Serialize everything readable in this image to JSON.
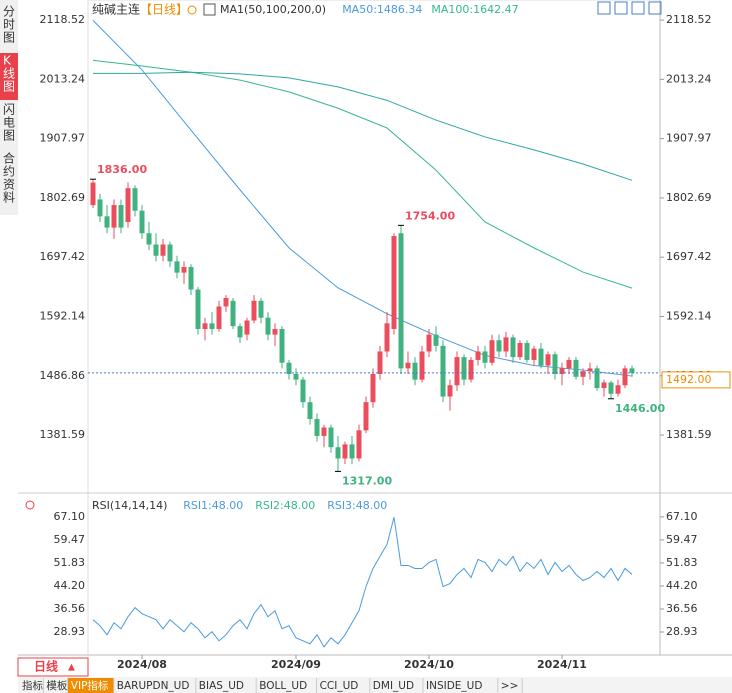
{
  "header": {
    "symbol": "纯碱主连",
    "period": "【日线】"
  },
  "sidebar": [
    "分时图",
    "K线图",
    "闪电图",
    "合约资料"
  ],
  "bottom_tabs": {
    "period_button": "日线",
    "tabs": [
      "指标",
      "模板",
      "VIP指标",
      "BARUPDN_UD",
      "BIAS_UD",
      "BOLL_UD",
      "CCI_UD",
      "DMI_UD",
      "INSIDE_UD",
      ">>"
    ]
  },
  "chart_data": [
    {
      "type": "candlestick",
      "legend": [
        {
          "label": "MA1(50,100,200,0)",
          "color": "#333333"
        },
        {
          "label": "MA50:1486.34",
          "color": "#4a9be0"
        },
        {
          "label": "MA100:1642.47",
          "color": "#35b88e"
        }
      ],
      "categories": [
        null,
        null,
        null,
        null,
        null,
        null,
        null,
        "2024/08",
        null,
        null,
        null,
        null,
        null,
        null,
        null,
        null,
        null,
        null,
        null,
        null,
        null,
        null,
        null,
        null,
        null,
        null,
        null,
        null,
        null,
        "2024/09",
        null,
        null,
        null,
        null,
        null,
        null,
        null,
        null,
        null,
        null,
        null,
        null,
        null,
        null,
        null,
        null,
        null,
        null,
        "2024/10",
        null,
        null,
        null,
        null,
        null,
        null,
        null,
        null,
        null,
        null,
        null,
        null,
        null,
        null,
        null,
        null,
        null,
        null,
        "2024/11",
        null,
        null,
        null,
        null,
        null,
        null,
        null,
        null,
        null,
        null,
        null
      ],
      "up_color": "#eb4d5c",
      "down_color": "#3fb27f",
      "candles": [
        [
          1790,
          1836,
          1785,
          1830
        ],
        [
          1800,
          1810,
          1760,
          1770
        ],
        [
          1770,
          1790,
          1740,
          1750
        ],
        [
          1750,
          1800,
          1730,
          1790
        ],
        [
          1790,
          1800,
          1740,
          1750
        ],
        [
          1760,
          1830,
          1750,
          1820
        ],
        [
          1820,
          1825,
          1770,
          1780
        ],
        [
          1780,
          1790,
          1730,
          1740
        ],
        [
          1740,
          1760,
          1710,
          1720
        ],
        [
          1720,
          1740,
          1690,
          1700
        ],
        [
          1700,
          1730,
          1690,
          1720
        ],
        [
          1720,
          1725,
          1680,
          1690
        ],
        [
          1690,
          1700,
          1660,
          1670
        ],
        [
          1670,
          1690,
          1650,
          1680
        ],
        [
          1680,
          1685,
          1630,
          1640
        ],
        [
          1640,
          1645,
          1560,
          1570
        ],
        [
          1570,
          1590,
          1550,
          1580
        ],
        [
          1580,
          1600,
          1560,
          1570
        ],
        [
          1570,
          1620,
          1565,
          1610
        ],
        [
          1610,
          1630,
          1600,
          1625
        ],
        [
          1620,
          1625,
          1570,
          1575
        ],
        [
          1575,
          1580,
          1545,
          1555
        ],
        [
          1560,
          1590,
          1550,
          1585
        ],
        [
          1585,
          1630,
          1580,
          1620
        ],
        [
          1620,
          1625,
          1580,
          1590
        ],
        [
          1590,
          1600,
          1550,
          1560
        ],
        [
          1560,
          1580,
          1540,
          1570
        ],
        [
          1570,
          1575,
          1500,
          1510
        ],
        [
          1510,
          1515,
          1480,
          1490
        ],
        [
          1490,
          1500,
          1470,
          1480
        ],
        [
          1480,
          1485,
          1430,
          1440
        ],
        [
          1440,
          1450,
          1400,
          1410
        ],
        [
          1410,
          1420,
          1370,
          1380
        ],
        [
          1380,
          1400,
          1360,
          1395
        ],
        [
          1395,
          1400,
          1350,
          1360
        ],
        [
          1360,
          1380,
          1317,
          1340
        ],
        [
          1340,
          1370,
          1330,
          1365
        ],
        [
          1365,
          1380,
          1330,
          1340
        ],
        [
          1340,
          1400,
          1335,
          1390
        ],
        [
          1390,
          1450,
          1385,
          1440
        ],
        [
          1440,
          1500,
          1430,
          1490
        ],
        [
          1490,
          1540,
          1480,
          1530
        ],
        [
          1530,
          1600,
          1520,
          1580
        ],
        [
          1570,
          1740,
          1560,
          1735
        ],
        [
          1740,
          1754,
          1490,
          1500
        ],
        [
          1500,
          1530,
          1490,
          1510
        ],
        [
          1510,
          1520,
          1470,
          1480
        ],
        [
          1480,
          1540,
          1475,
          1530
        ],
        [
          1530,
          1570,
          1520,
          1560
        ],
        [
          1560,
          1575,
          1530,
          1540
        ],
        [
          1540,
          1550,
          1440,
          1450
        ],
        [
          1450,
          1480,
          1425,
          1470
        ],
        [
          1470,
          1530,
          1460,
          1520
        ],
        [
          1520,
          1525,
          1470,
          1480
        ],
        [
          1480,
          1520,
          1475,
          1515
        ],
        [
          1515,
          1540,
          1505,
          1530
        ],
        [
          1530,
          1540,
          1500,
          1510
        ],
        [
          1510,
          1560,
          1505,
          1550
        ],
        [
          1550,
          1560,
          1520,
          1530
        ],
        [
          1530,
          1565,
          1520,
          1555
        ],
        [
          1555,
          1560,
          1510,
          1520
        ],
        [
          1520,
          1550,
          1515,
          1545
        ],
        [
          1545,
          1550,
          1510,
          1515
        ],
        [
          1515,
          1540,
          1505,
          1535
        ],
        [
          1535,
          1545,
          1500,
          1505
        ],
        [
          1505,
          1530,
          1490,
          1525
        ],
        [
          1525,
          1530,
          1480,
          1490
        ],
        [
          1490,
          1510,
          1470,
          1500
        ],
        [
          1500,
          1520,
          1490,
          1515
        ],
        [
          1515,
          1520,
          1480,
          1485
        ],
        [
          1485,
          1500,
          1470,
          1495
        ],
        [
          1495,
          1510,
          1480,
          1500
        ],
        [
          1500,
          1505,
          1460,
          1465
        ],
        [
          1465,
          1480,
          1450,
          1475
        ],
        [
          1475,
          1478,
          1446,
          1455
        ],
        [
          1455,
          1480,
          1450,
          1470
        ],
        [
          1470,
          1505,
          1465,
          1500
        ],
        [
          1500,
          1505,
          1485,
          1492
        ]
      ],
      "ma_series": [
        {
          "color": "#4a9be0",
          "x": [
            0,
            7,
            14,
            21,
            28,
            35,
            42,
            49,
            56,
            63,
            70,
            77
          ],
          "values": [
            2118,
            2030,
            1923,
            1817,
            1714,
            1643,
            1597,
            1558,
            1523,
            1505,
            1497,
            1486.34
          ]
        },
        {
          "color": "#35b88e",
          "x": [
            0,
            7,
            14,
            21,
            28,
            35,
            42,
            49,
            56,
            63,
            70,
            77
          ],
          "values": [
            2047,
            2037,
            2026,
            2012,
            1991,
            1962,
            1927,
            1852,
            1760,
            1714,
            1671,
            1642.47
          ]
        },
        {
          "color": "#2fa5a8",
          "x": [
            0,
            7,
            14,
            21,
            28,
            35,
            42,
            49,
            56,
            63,
            70,
            77
          ],
          "values": [
            2024,
            2024,
            2026,
            2023,
            2016,
            2000,
            1976,
            1941,
            1911,
            1888,
            1863,
            1834
          ]
        }
      ],
      "annotations": [
        {
          "index": 0,
          "value": 1836,
          "label": "1836.00",
          "color": "#eb4d5c"
        },
        {
          "index": 44,
          "value": 1754,
          "label": "1754.00",
          "color": "#eb4d5c"
        },
        {
          "index": 35,
          "value": 1317,
          "label": "1317.00",
          "color": "#3fb27f"
        },
        {
          "index": 74,
          "value": 1446,
          "label": "1446.00",
          "color": "#3fb27f"
        }
      ],
      "last_price": {
        "value": 1492,
        "label": "1492.00"
      },
      "ylim": [
        1284,
        2140
      ],
      "yticks": [
        2118.52,
        2013.24,
        1907.97,
        1802.69,
        1697.42,
        1592.14,
        1486.86,
        1381.59
      ]
    },
    {
      "type": "line",
      "legend": [
        {
          "label": "RSI(14,14,14)",
          "color": "#333333"
        },
        {
          "label": "RSI1:48.00",
          "color": "#4a9be0"
        },
        {
          "label": "RSI2:48.00",
          "color": "#35b88e"
        },
        {
          "label": "RSI3:48.00",
          "color": "#4a9be0"
        }
      ],
      "series": [
        {
          "color": "#4a9be0",
          "values": [
            33,
            31,
            28,
            32,
            30,
            34,
            37,
            35,
            34,
            33,
            30,
            33,
            31,
            29,
            32,
            30,
            27,
            29,
            26,
            28,
            31,
            33,
            30,
            35,
            38,
            34,
            36,
            30,
            31,
            27,
            26,
            25,
            28,
            24,
            27,
            25,
            28,
            32,
            36,
            44,
            50,
            54,
            58,
            67,
            51,
            51,
            50,
            50,
            52,
            53,
            44,
            45,
            48,
            50,
            47,
            53,
            52,
            49,
            53,
            51,
            54,
            49,
            52,
            50,
            53,
            48,
            52,
            49,
            51,
            48,
            46,
            47,
            49,
            47,
            50,
            46,
            50,
            48
          ]
        }
      ],
      "ylim": [
        21.3,
        72.7
      ],
      "yticks": [
        67.1,
        59.47,
        51.83,
        44.2,
        36.56,
        28.93
      ]
    }
  ]
}
